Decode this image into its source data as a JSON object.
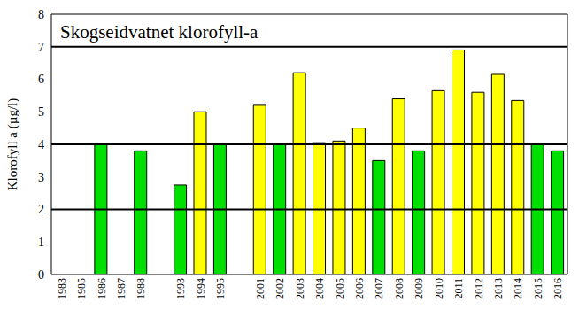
{
  "chart_data": {
    "type": "bar",
    "title": "Skogseidvatnet klorofyll-a",
    "y_label": "Klorofyll a (µg/l)",
    "categories": [
      "1983",
      "1985",
      "1986",
      "1987",
      "1988",
      null,
      "1993",
      "1994",
      "1995",
      null,
      "2001",
      "2002",
      "2003",
      "2004",
      "2005",
      "2006",
      "2007",
      "2008",
      "2009",
      "2010",
      "2011",
      "2012",
      "2013",
      "2014",
      "2015",
      "2016"
    ],
    "values": [
      null,
      null,
      4.0,
      null,
      3.8,
      null,
      2.75,
      5.0,
      4.0,
      null,
      5.2,
      4.0,
      6.2,
      4.05,
      4.1,
      4.5,
      3.5,
      5.4,
      3.8,
      5.65,
      6.9,
      5.6,
      6.15,
      5.35,
      4.0,
      3.8
    ],
    "colors": [
      null,
      null,
      "#00e000",
      null,
      "#00e000",
      null,
      "#00e000",
      "#ffff00",
      "#00e000",
      null,
      "#ffff00",
      "#00e000",
      "#ffff00",
      "#ffff00",
      "#ffff00",
      "#ffff00",
      "#00e000",
      "#ffff00",
      "#00e000",
      "#ffff00",
      "#ffff00",
      "#ffff00",
      "#ffff00",
      "#ffff00",
      "#00e000",
      "#00e000"
    ],
    "thresholds": [
      2,
      4,
      7
    ],
    "ylim": [
      0,
      8
    ],
    "yticks": [
      0,
      1,
      2,
      3,
      4,
      5,
      6,
      7,
      8
    ],
    "grid": false
  }
}
